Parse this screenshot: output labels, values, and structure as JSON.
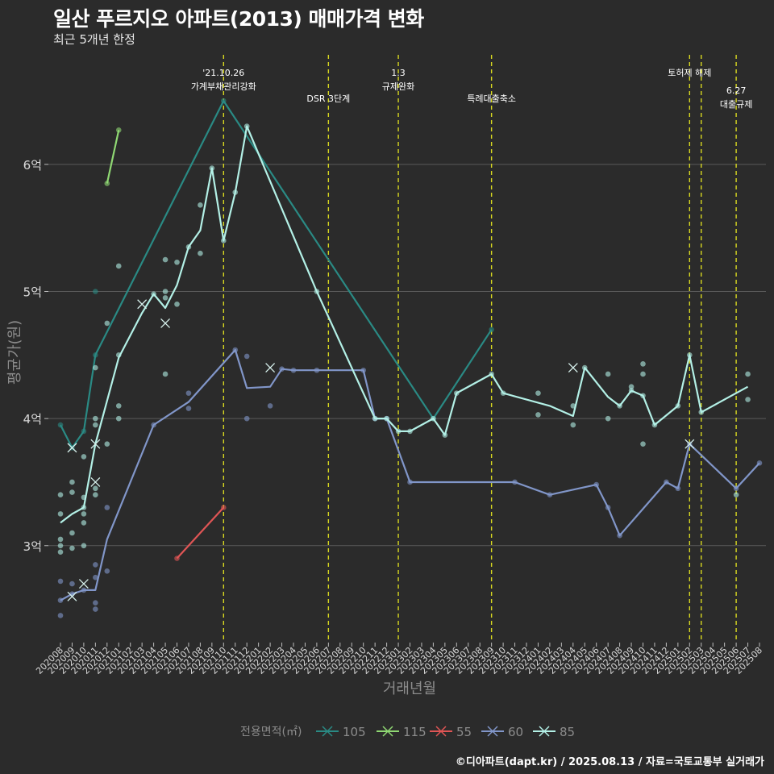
{
  "header": {
    "title": "일산 푸르지오 아파트(2013) 매매가격 변화",
    "subtitle": "최근 5개년 한정"
  },
  "footer": {
    "caption": "©디아파트(dapt.kr) / 2025.08.13 / 자료=국토교통부 실거래가"
  },
  "colors": {
    "background": "#2b2b2b",
    "grid": "#5a5a5a",
    "event_line": "#d8d820"
  },
  "chart_data": {
    "type": "line",
    "xlabel": "거래년월",
    "ylabel": "평균가(원)",
    "ylim": [
      2.25,
      6.9
    ],
    "y_ticks": [
      {
        "value": 3,
        "label": "3억"
      },
      {
        "value": 4,
        "label": "4억"
      },
      {
        "value": 5,
        "label": "5억"
      },
      {
        "value": 6,
        "label": "6억"
      }
    ],
    "x_categories": [
      "202008",
      "202009",
      "202010",
      "202011",
      "202012",
      "202101",
      "202102",
      "202103",
      "202104",
      "202105",
      "202106",
      "202107",
      "202108",
      "202109",
      "202110",
      "202111",
      "202112",
      "202201",
      "202202",
      "202203",
      "202204",
      "202205",
      "202206",
      "202207",
      "202208",
      "202209",
      "202210",
      "202211",
      "202212",
      "202301",
      "202302",
      "202303",
      "202304",
      "202305",
      "202306",
      "202307",
      "202308",
      "202309",
      "202310",
      "202311",
      "202312",
      "202401",
      "202402",
      "202403",
      "202404",
      "202405",
      "202406",
      "202407",
      "202408",
      "202409",
      "202410",
      "202411",
      "202412",
      "202501",
      "202502",
      "202503",
      "202504",
      "202505",
      "202506",
      "202507",
      "202508"
    ],
    "events": [
      {
        "x": "202110",
        "label_lines": [
          "'21.10.26",
          "가계부채관리강화"
        ],
        "level": 0
      },
      {
        "x": "202207",
        "label_lines": [
          "DSR 3단계"
        ],
        "level": 1
      },
      {
        "x": "202301",
        "label_lines": [
          "1.3",
          "규제완화"
        ],
        "level": 0
      },
      {
        "x": "202309",
        "label_lines": [
          "특례대출축소"
        ],
        "level": 1
      },
      {
        "x": "202502",
        "label_lines": [
          "토허제 해제"
        ],
        "level": 0
      },
      {
        "x": "202503",
        "label_lines": [],
        "level": 0
      },
      {
        "x": "202506",
        "label_lines": [
          "6.27",
          "대출규제"
        ],
        "level": 2
      }
    ],
    "legend": {
      "title": "전용면적(㎡)",
      "position": "bottom"
    },
    "series": [
      {
        "name": "105",
        "color": "#2a8a84",
        "line": [
          [
            "202008",
            3.95
          ],
          [
            "202009",
            3.77
          ],
          [
            "202010",
            3.9
          ],
          [
            "202011",
            4.5
          ],
          [
            "202110",
            6.5
          ],
          [
            "202304",
            4.0
          ],
          [
            "202309",
            4.7
          ]
        ],
        "points": [
          [
            "202008",
            3.95
          ],
          [
            "202009",
            3.77
          ],
          [
            "202010",
            3.9
          ],
          [
            "202011",
            4.5
          ],
          [
            "202011",
            5.0
          ],
          [
            "202110",
            6.5
          ],
          [
            "202304",
            4.0
          ],
          [
            "202309",
            4.7
          ]
        ],
        "crosses": [
          [
            "202009",
            3.77
          ]
        ]
      },
      {
        "name": "115",
        "color": "#8fd873",
        "line": [
          [
            "202012",
            5.85
          ],
          [
            "202101",
            6.27
          ]
        ],
        "points": [
          [
            "202012",
            5.85
          ],
          [
            "202101",
            6.27
          ]
        ],
        "crosses": []
      },
      {
        "name": "55",
        "color": "#e05555",
        "line": [
          [
            "202106",
            2.9
          ],
          [
            "202110",
            3.3
          ]
        ],
        "points": [
          [
            "202106",
            2.9
          ],
          [
            "202110",
            3.3
          ]
        ],
        "crosses": []
      },
      {
        "name": "60",
        "color": "#8196c9",
        "line": [
          [
            "202008",
            2.57
          ],
          [
            "202009",
            2.62
          ],
          [
            "202010",
            2.65
          ],
          [
            "202011",
            2.65
          ],
          [
            "202012",
            3.05
          ],
          [
            "202104",
            3.95
          ],
          [
            "202107",
            4.13
          ],
          [
            "202111",
            4.54
          ],
          [
            "202112",
            4.24
          ],
          [
            "202202",
            4.25
          ],
          [
            "202203",
            4.39
          ],
          [
            "202204",
            4.38
          ],
          [
            "202206",
            4.38
          ],
          [
            "202210",
            4.38
          ],
          [
            "202211",
            4.0
          ],
          [
            "202212",
            4.0
          ],
          [
            "202302",
            3.5
          ],
          [
            "202309",
            3.5
          ],
          [
            "202311",
            3.5
          ],
          [
            "202402",
            3.4
          ],
          [
            "202406",
            3.48
          ],
          [
            "202407",
            3.3
          ],
          [
            "202408",
            3.08
          ],
          [
            "202412",
            3.5
          ],
          [
            "202501",
            3.45
          ],
          [
            "202502",
            3.8
          ],
          [
            "202506",
            3.45
          ],
          [
            "202508",
            3.65
          ]
        ],
        "points": [
          [
            "202008",
            2.57
          ],
          [
            "202008",
            2.45
          ],
          [
            "202008",
            2.72
          ],
          [
            "202009",
            2.62
          ],
          [
            "202009",
            2.7
          ],
          [
            "202010",
            2.65
          ],
          [
            "202011",
            2.55
          ],
          [
            "202011",
            2.5
          ],
          [
            "202011",
            2.75
          ],
          [
            "202011",
            2.85
          ],
          [
            "202012",
            2.8
          ],
          [
            "202012",
            3.3
          ],
          [
            "202104",
            3.95
          ],
          [
            "202107",
            4.08
          ],
          [
            "202107",
            4.2
          ],
          [
            "202111",
            4.54
          ],
          [
            "202112",
            4.49
          ],
          [
            "202112",
            4.0
          ],
          [
            "202202",
            4.1
          ],
          [
            "202203",
            4.39
          ],
          [
            "202204",
            4.38
          ],
          [
            "202206",
            4.38
          ],
          [
            "202210",
            4.38
          ],
          [
            "202211",
            4.0
          ],
          [
            "202212",
            4.0
          ],
          [
            "202302",
            3.5
          ],
          [
            "202311",
            3.5
          ],
          [
            "202402",
            3.4
          ],
          [
            "202406",
            3.48
          ],
          [
            "202407",
            3.3
          ],
          [
            "202408",
            3.08
          ],
          [
            "202412",
            3.5
          ],
          [
            "202501",
            3.45
          ],
          [
            "202502",
            3.8
          ],
          [
            "202506",
            3.45
          ],
          [
            "202508",
            3.65
          ]
        ],
        "crosses": [
          [
            "202009",
            2.6
          ],
          [
            "202010",
            2.7
          ],
          [
            "202202",
            4.4
          ],
          [
            "202502",
            3.8
          ]
        ]
      },
      {
        "name": "85",
        "color": "#b3f0e6",
        "line": [
          [
            "202008",
            3.18
          ],
          [
            "202009",
            3.25
          ],
          [
            "202010",
            3.3
          ],
          [
            "202011",
            3.8
          ],
          [
            "202101",
            4.48
          ],
          [
            "202103",
            4.83
          ],
          [
            "202104",
            4.98
          ],
          [
            "202105",
            4.87
          ],
          [
            "202106",
            5.05
          ],
          [
            "202107",
            5.35
          ],
          [
            "202108",
            5.48
          ],
          [
            "202109",
            5.97
          ],
          [
            "202110",
            5.4
          ],
          [
            "202111",
            5.78
          ],
          [
            "202112",
            6.3
          ],
          [
            "202206",
            5.0
          ],
          [
            "202211",
            4.0
          ],
          [
            "202212",
            4.0
          ],
          [
            "202301",
            3.9
          ],
          [
            "202302",
            3.9
          ],
          [
            "202304",
            4.0
          ],
          [
            "202305",
            3.87
          ],
          [
            "202306",
            4.2
          ],
          [
            "202309",
            4.35
          ],
          [
            "202310",
            4.2
          ],
          [
            "202402",
            4.1
          ],
          [
            "202404",
            4.02
          ],
          [
            "202405",
            4.4
          ],
          [
            "202407",
            4.17
          ],
          [
            "202408",
            4.1
          ],
          [
            "202409",
            4.22
          ],
          [
            "202410",
            4.18
          ],
          [
            "202411",
            3.95
          ],
          [
            "202501",
            4.1
          ],
          [
            "202502",
            4.5
          ],
          [
            "202503",
            4.05
          ],
          [
            "202507",
            4.25
          ]
        ],
        "points": [
          [
            "202008",
            3.4
          ],
          [
            "202008",
            3.25
          ],
          [
            "202008",
            3.05
          ],
          [
            "202008",
            3.0
          ],
          [
            "202008",
            2.95
          ],
          [
            "202009",
            3.5
          ],
          [
            "202009",
            3.42
          ],
          [
            "202009",
            3.1
          ],
          [
            "202009",
            2.98
          ],
          [
            "202010",
            3.3
          ],
          [
            "202010",
            3.38
          ],
          [
            "202010",
            3.25
          ],
          [
            "202010",
            3.18
          ],
          [
            "202010",
            3.0
          ],
          [
            "202010",
            3.7
          ],
          [
            "202011",
            4.4
          ],
          [
            "202011",
            4.0
          ],
          [
            "202011",
            3.95
          ],
          [
            "202011",
            3.45
          ],
          [
            "202011",
            3.4
          ],
          [
            "202012",
            3.8
          ],
          [
            "202012",
            4.75
          ],
          [
            "202101",
            5.2
          ],
          [
            "202101",
            4.5
          ],
          [
            "202101",
            4.1
          ],
          [
            "202101",
            4.0
          ],
          [
            "202104",
            4.98
          ],
          [
            "202105",
            5.25
          ],
          [
            "202105",
            5.0
          ],
          [
            "202105",
            4.95
          ],
          [
            "202105",
            4.35
          ],
          [
            "202106",
            5.23
          ],
          [
            "202106",
            4.9
          ],
          [
            "202107",
            5.35
          ],
          [
            "202108",
            5.3
          ],
          [
            "202108",
            5.68
          ],
          [
            "202109",
            5.97
          ],
          [
            "202110",
            5.4
          ],
          [
            "202111",
            5.78
          ],
          [
            "202112",
            6.3
          ],
          [
            "202206",
            5.0
          ],
          [
            "202211",
            4.0
          ],
          [
            "202212",
            4.0
          ],
          [
            "202301",
            3.9
          ],
          [
            "202302",
            3.9
          ],
          [
            "202304",
            4.0
          ],
          [
            "202305",
            3.87
          ],
          [
            "202306",
            4.2
          ],
          [
            "202309",
            4.35
          ],
          [
            "202310",
            4.2
          ],
          [
            "202401",
            4.2
          ],
          [
            "202401",
            4.03
          ],
          [
            "202404",
            4.1
          ],
          [
            "202404",
            3.95
          ],
          [
            "202405",
            4.4
          ],
          [
            "202407",
            4.35
          ],
          [
            "202407",
            4.0
          ],
          [
            "202408",
            4.1
          ],
          [
            "202409",
            4.25
          ],
          [
            "202409",
            4.22
          ],
          [
            "202410",
            4.43
          ],
          [
            "202410",
            4.35
          ],
          [
            "202410",
            4.18
          ],
          [
            "202410",
            3.8
          ],
          [
            "202411",
            3.95
          ],
          [
            "202501",
            4.1
          ],
          [
            "202502",
            4.5
          ],
          [
            "202503",
            4.05
          ],
          [
            "202506",
            3.4
          ],
          [
            "202507",
            4.35
          ],
          [
            "202507",
            4.15
          ]
        ],
        "crosses": [
          [
            "202011",
            3.8
          ],
          [
            "202011",
            3.5
          ],
          [
            "202103",
            4.9
          ],
          [
            "202105",
            4.75
          ],
          [
            "202404",
            4.4
          ]
        ]
      }
    ]
  }
}
